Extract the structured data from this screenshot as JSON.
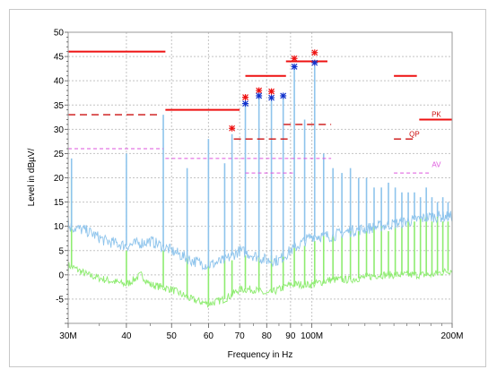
{
  "chart_data": {
    "type": "line",
    "title": "",
    "xlabel": "Frequency in Hz",
    "ylabel": "Level in dBµV/",
    "x_scale": "log",
    "xlim": [
      30,
      200
    ],
    "ylim": [
      -10,
      50
    ],
    "y_ticks": [
      -5,
      0,
      5,
      10,
      15,
      20,
      25,
      30,
      35,
      40,
      45,
      50
    ],
    "x_ticks": [
      {
        "value": 30,
        "label": "30M"
      },
      {
        "value": 40,
        "label": "40"
      },
      {
        "value": 50,
        "label": "50"
      },
      {
        "value": 60,
        "label": "60"
      },
      {
        "value": 70,
        "label": "70"
      },
      {
        "value": 80,
        "label": "80"
      },
      {
        "value": 90,
        "label": "90"
      },
      {
        "value": 100,
        "label": "100M"
      },
      {
        "value": 200,
        "label": "200M"
      }
    ],
    "grid": true,
    "colors": {
      "peak_trace": "#8ec4ec",
      "average_trace": "#8eec70",
      "limit": "#ee1111",
      "limit_dashed": "#cc1111",
      "average_limit": "#dd55dd",
      "peak_marker": "#ee1111",
      "qp_marker": "#1133cc"
    },
    "series": [
      {
        "name": "",
        "kind": "peak-trace",
        "baseline": [
          [
            30,
            10
          ],
          [
            33,
            9
          ],
          [
            36,
            7
          ],
          [
            40,
            6
          ],
          [
            45,
            7
          ],
          [
            50,
            5
          ],
          [
            55,
            3
          ],
          [
            60,
            2
          ],
          [
            65,
            3
          ],
          [
            70,
            5
          ],
          [
            75,
            4
          ],
          [
            80,
            3
          ],
          [
            85,
            3
          ],
          [
            90,
            5
          ],
          [
            100,
            8
          ],
          [
            110,
            8
          ],
          [
            120,
            9
          ],
          [
            140,
            10
          ],
          [
            160,
            11
          ],
          [
            180,
            12
          ],
          [
            200,
            12
          ]
        ],
        "spikes": [
          [
            30.5,
            24
          ],
          [
            40,
            25
          ],
          [
            48,
            33
          ],
          [
            54,
            22
          ],
          [
            60,
            28
          ],
          [
            65,
            23
          ],
          [
            67.4,
            29
          ],
          [
            72,
            35
          ],
          [
            77,
            36.5
          ],
          [
            81.9,
            36
          ],
          [
            86.8,
            36.5
          ],
          [
            91.7,
            42.5
          ],
          [
            96.5,
            32
          ],
          [
            101.4,
            43
          ],
          [
            106,
            25
          ],
          [
            111,
            22
          ],
          [
            116,
            21
          ],
          [
            121,
            22
          ],
          [
            126,
            20
          ],
          [
            131,
            20
          ],
          [
            136,
            18
          ],
          [
            141,
            18
          ],
          [
            146,
            19
          ],
          [
            151,
            18
          ],
          [
            156,
            17
          ],
          [
            161,
            17
          ],
          [
            166,
            17
          ],
          [
            171,
            16
          ],
          [
            176,
            18
          ],
          [
            181,
            16
          ],
          [
            186,
            15
          ],
          [
            191,
            16
          ],
          [
            196,
            15
          ]
        ]
      },
      {
        "name": "",
        "kind": "average-trace",
        "baseline": [
          [
            30,
            2
          ],
          [
            33,
            0
          ],
          [
            36,
            -1
          ],
          [
            40,
            -2
          ],
          [
            43,
            0
          ],
          [
            45,
            -2
          ],
          [
            50,
            -3
          ],
          [
            55,
            -5
          ],
          [
            60,
            -6
          ],
          [
            65,
            -5
          ],
          [
            70,
            -3
          ],
          [
            75,
            -3
          ],
          [
            80,
            -4
          ],
          [
            85,
            -3
          ],
          [
            90,
            -2
          ],
          [
            100,
            -2
          ],
          [
            110,
            -1
          ],
          [
            120,
            -1
          ],
          [
            140,
            0
          ],
          [
            160,
            0
          ],
          [
            180,
            0
          ],
          [
            200,
            1
          ]
        ],
        "spikes": [
          [
            30.5,
            20
          ],
          [
            40,
            5
          ],
          [
            48,
            5
          ],
          [
            54,
            4
          ],
          [
            60,
            3
          ],
          [
            65,
            3
          ],
          [
            67.4,
            3
          ],
          [
            72,
            4
          ],
          [
            77,
            5
          ],
          [
            81.9,
            4
          ],
          [
            86.8,
            5
          ],
          [
            91.7,
            6
          ],
          [
            96.5,
            6
          ],
          [
            101.4,
            7
          ],
          [
            106,
            8
          ],
          [
            111,
            8
          ],
          [
            116,
            8
          ],
          [
            121,
            9
          ],
          [
            126,
            9
          ],
          [
            131,
            9
          ],
          [
            136,
            10
          ],
          [
            141,
            10
          ],
          [
            146,
            9
          ],
          [
            151,
            10
          ],
          [
            156,
            10
          ],
          [
            161,
            11
          ],
          [
            166,
            11
          ],
          [
            171,
            12
          ],
          [
            176,
            12
          ],
          [
            181,
            11
          ],
          [
            186,
            12
          ],
          [
            191,
            11
          ],
          [
            196,
            11
          ]
        ]
      },
      {
        "name": "",
        "kind": "limit-solid",
        "segments": [
          [
            [
              30,
              46
            ],
            [
              48.5,
              46
            ]
          ],
          [
            [
              48.5,
              34
            ],
            [
              70,
              34
            ]
          ],
          [
            [
              72,
              41
            ],
            [
              88,
              41
            ]
          ],
          [
            [
              88,
              44
            ],
            [
              108,
              44
            ]
          ],
          [
            [
              150,
              41
            ],
            [
              168,
              41
            ]
          ],
          [
            [
              170,
              32
            ],
            [
              200,
              32
            ]
          ]
        ]
      },
      {
        "name": "",
        "kind": "limit-dashed",
        "segments": [
          [
            [
              30,
              33
            ],
            [
              47,
              33
            ]
          ],
          [
            [
              68,
              28
            ],
            [
              90,
              28
            ]
          ],
          [
            [
              87,
              31
            ],
            [
              110,
              31
            ]
          ],
          [
            [
              150,
              28
            ],
            [
              168,
              28
            ]
          ]
        ]
      },
      {
        "name": "",
        "kind": "limit-average",
        "segments": [
          [
            [
              30,
              26
            ],
            [
              48,
              26
            ]
          ],
          [
            [
              48.5,
              24
            ],
            [
              110,
              24
            ]
          ],
          [
            [
              72,
              21
            ],
            [
              92,
              21
            ]
          ],
          [
            [
              150,
              21
            ],
            [
              180,
              21
            ]
          ]
        ]
      },
      {
        "name": "",
        "kind": "peak-markers",
        "points": [
          [
            67.4,
            30.2
          ],
          [
            72,
            36.6
          ],
          [
            77,
            38
          ],
          [
            81.9,
            37.8
          ],
          [
            91.7,
            44.6
          ],
          [
            101.4,
            45.8
          ]
        ]
      },
      {
        "name": "",
        "kind": "qp-markers",
        "points": [
          [
            72,
            35.3
          ],
          [
            77,
            36.9
          ],
          [
            81.9,
            36.5
          ],
          [
            86.8,
            36.9
          ],
          [
            91.7,
            42.9
          ],
          [
            101.4,
            43.7
          ]
        ]
      }
    ],
    "annotations": [
      {
        "text": "PK",
        "x": 185,
        "y": 32.6,
        "color": "#cc1111"
      },
      {
        "text": "QP",
        "x": 166,
        "y": 28.5,
        "color": "#cc1111"
      },
      {
        "text": "AV",
        "x": 185,
        "y": 22.2,
        "color": "#dd55dd"
      }
    ]
  }
}
